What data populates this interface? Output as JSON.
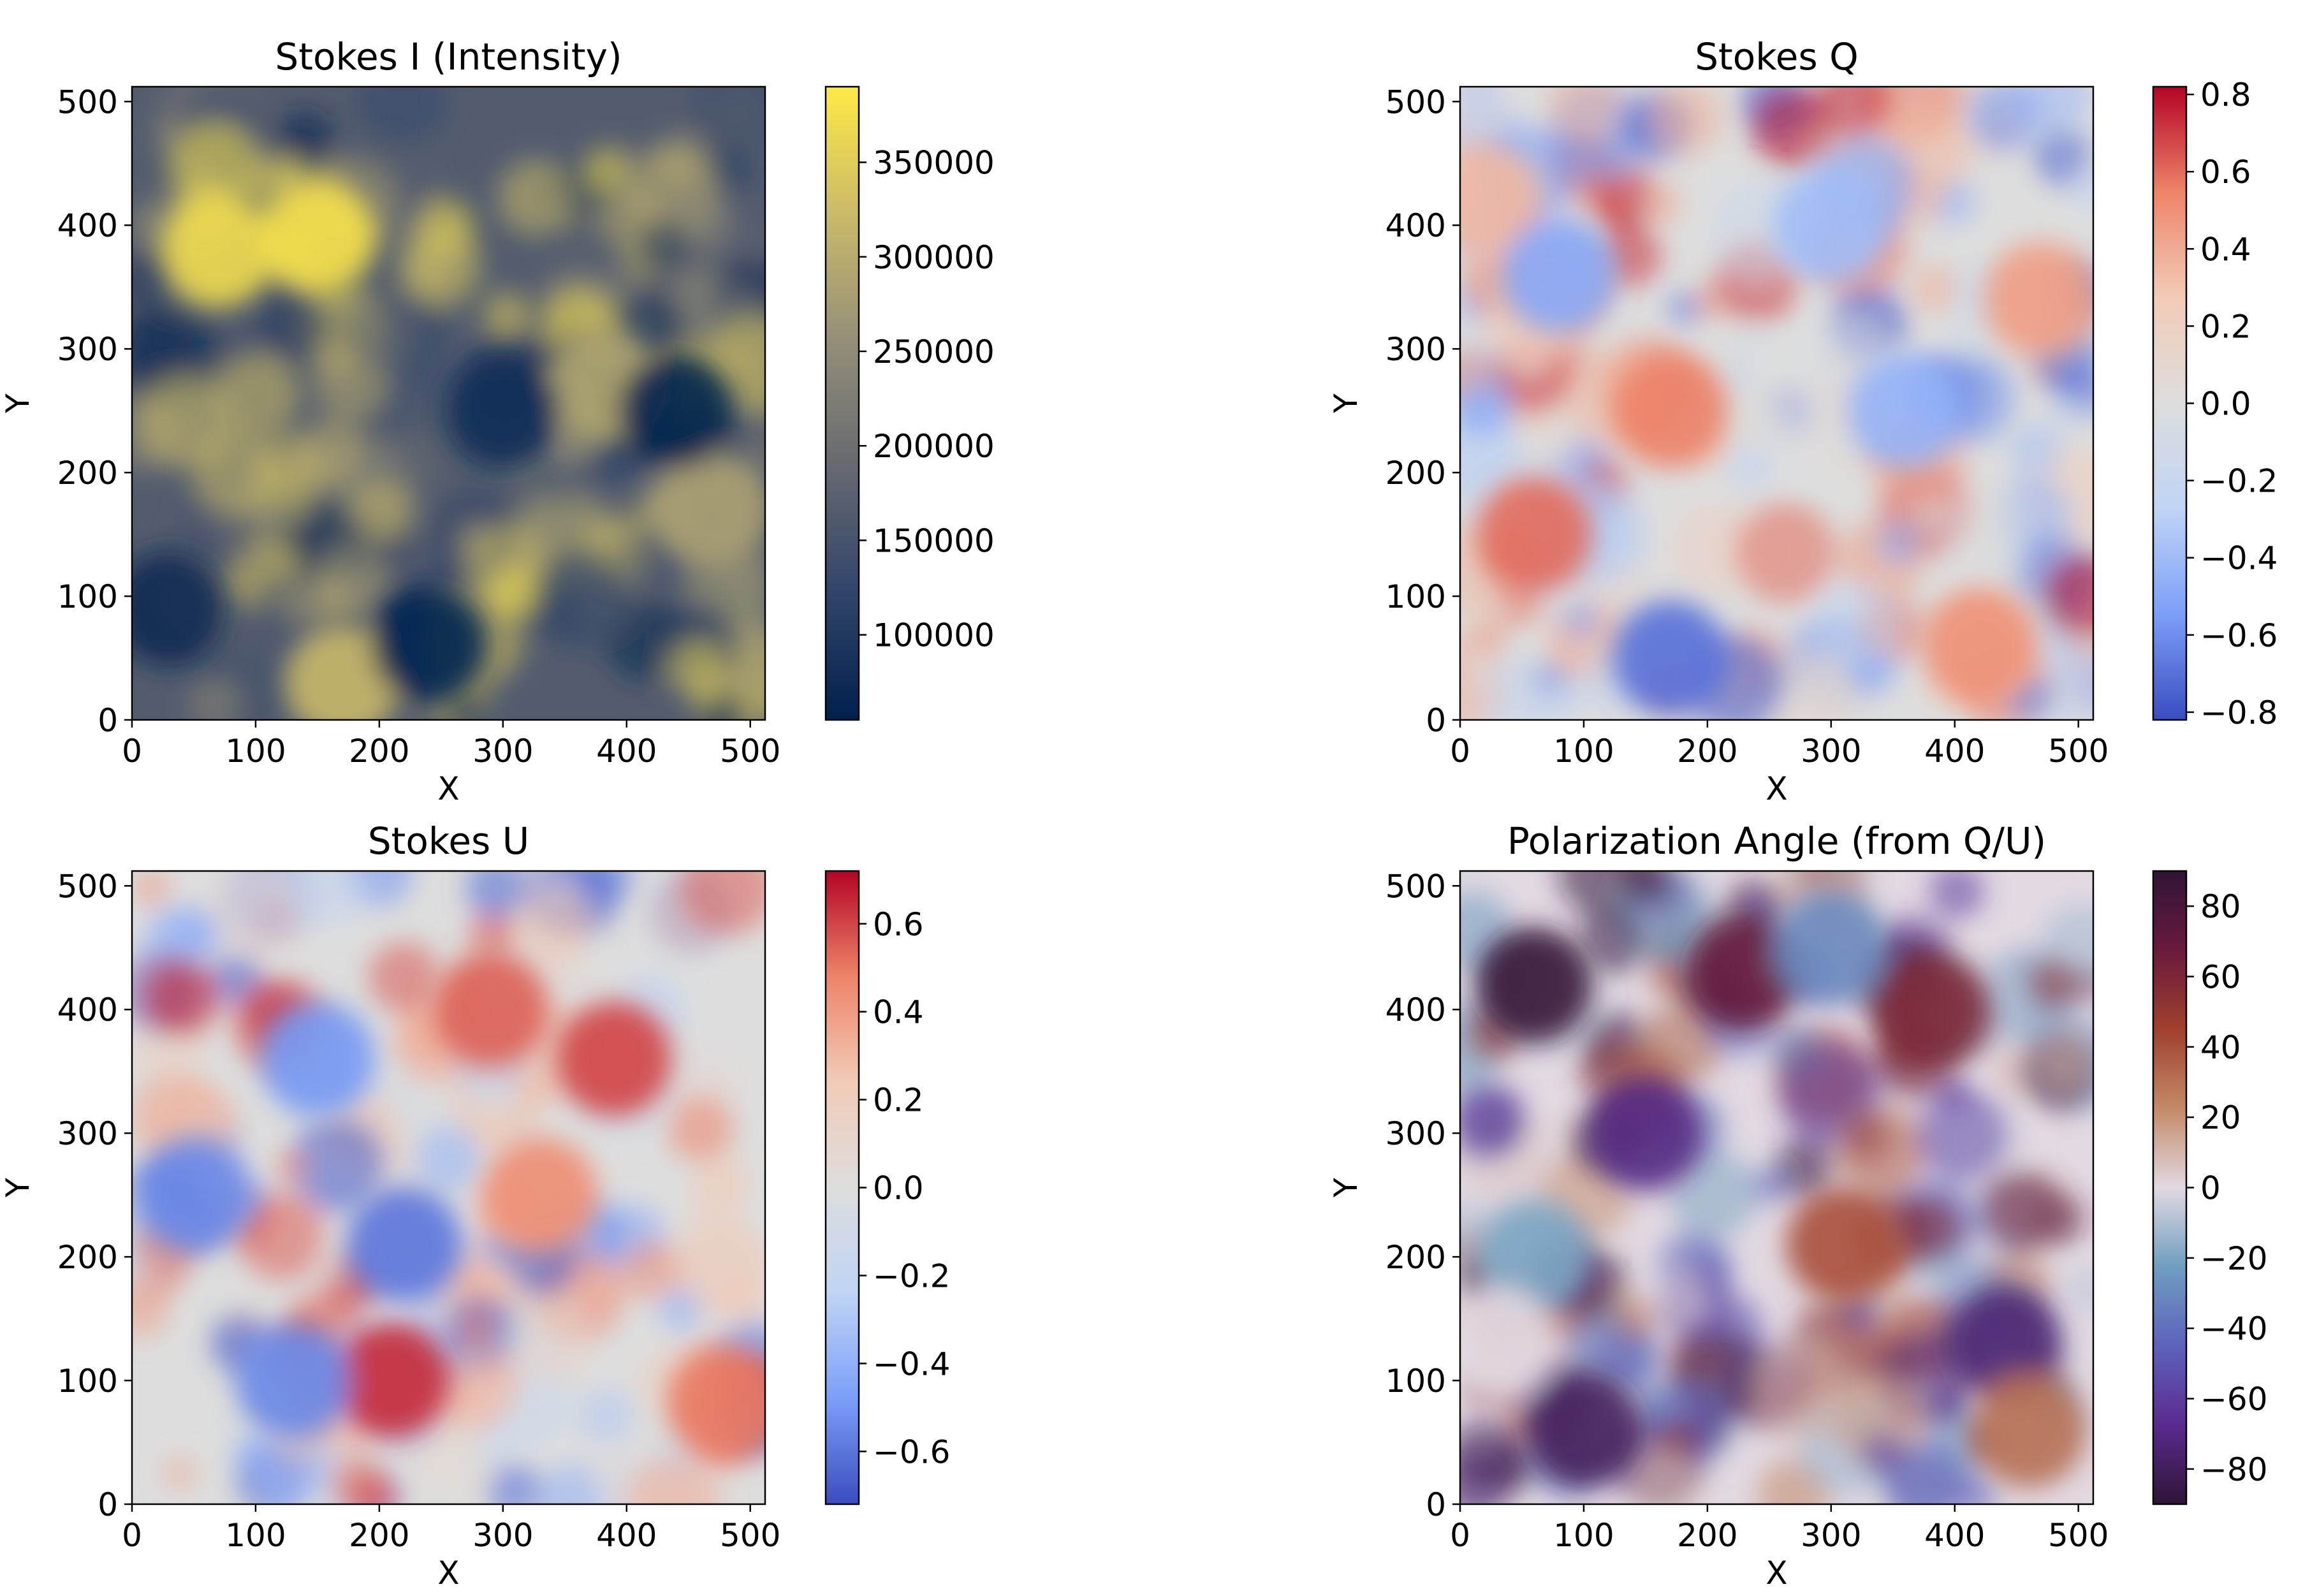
{
  "chart_data": [
    {
      "type": "heatmap",
      "title": "Stokes I (Intensity)",
      "xlabel": "X",
      "ylabel": "Y",
      "xlim": [
        0,
        512
      ],
      "ylim": [
        0,
        512
      ],
      "xticks": [
        0,
        100,
        200,
        300,
        400,
        500
      ],
      "yticks": [
        0,
        100,
        200,
        300,
        400,
        500
      ],
      "colorbar": {
        "range": [
          55000,
          390000
        ],
        "ticks": [
          100000,
          150000,
          200000,
          250000,
          300000,
          350000
        ],
        "tick_labels": [
          "100000",
          "150000",
          "200000",
          "250000",
          "300000",
          "350000"
        ],
        "colormap": "cividis",
        "colors": [
          "#00204c",
          "#31446b",
          "#666970",
          "#958f78",
          "#cbba69",
          "#ffe945"
        ]
      },
      "features": [
        {
          "x": 70,
          "y": 380,
          "value": 370000
        },
        {
          "x": 150,
          "y": 390,
          "value": 380000
        },
        {
          "x": 170,
          "y": 30,
          "value": 320000
        },
        {
          "x": 380,
          "y": 270,
          "value": 290000
        },
        {
          "x": 470,
          "y": 170,
          "value": 280000
        },
        {
          "x": 30,
          "y": 90,
          "value": 70000
        },
        {
          "x": 240,
          "y": 60,
          "value": 65000
        },
        {
          "x": 440,
          "y": 250,
          "value": 60000
        },
        {
          "x": 300,
          "y": 250,
          "value": 80000
        }
      ]
    },
    {
      "type": "heatmap",
      "title": "Stokes Q",
      "xlabel": "X",
      "ylabel": "Y",
      "xlim": [
        0,
        512
      ],
      "ylim": [
        0,
        512
      ],
      "xticks": [
        0,
        100,
        200,
        300,
        400,
        500
      ],
      "yticks": [
        0,
        100,
        200,
        300,
        400,
        500
      ],
      "colorbar": {
        "range": [
          -0.82,
          0.82
        ],
        "ticks": [
          -0.8,
          -0.6,
          -0.4,
          -0.2,
          0.0,
          0.2,
          0.4,
          0.6,
          0.8
        ],
        "tick_labels": [
          "−0.8",
          "−0.6",
          "−0.4",
          "−0.2",
          "0.0",
          "0.2",
          "0.4",
          "0.6",
          "0.8"
        ],
        "colormap": "coolwarm",
        "colors": [
          "#3b4cc0",
          "#7b9ff9",
          "#c0d4f5",
          "#dddddd",
          "#f2cbb7",
          "#ee8468",
          "#b40426"
        ]
      },
      "features": [
        {
          "x": 60,
          "y": 150,
          "value": 0.6
        },
        {
          "x": 170,
          "y": 250,
          "value": 0.55
        },
        {
          "x": 470,
          "y": 340,
          "value": 0.45
        },
        {
          "x": 420,
          "y": 60,
          "value": 0.5
        },
        {
          "x": 20,
          "y": 420,
          "value": 0.35
        },
        {
          "x": 170,
          "y": 50,
          "value": -0.7
        },
        {
          "x": 80,
          "y": 360,
          "value": -0.5
        },
        {
          "x": 360,
          "y": 250,
          "value": -0.45
        },
        {
          "x": 300,
          "y": 400,
          "value": -0.4
        }
      ]
    },
    {
      "type": "heatmap",
      "title": "Stokes U",
      "xlabel": "X",
      "ylabel": "Y",
      "xlim": [
        0,
        512
      ],
      "ylim": [
        0,
        512
      ],
      "xticks": [
        0,
        100,
        200,
        300,
        400,
        500
      ],
      "yticks": [
        0,
        100,
        200,
        300,
        400,
        500
      ],
      "colorbar": {
        "range": [
          -0.72,
          0.72
        ],
        "ticks": [
          -0.6,
          -0.4,
          -0.2,
          0.0,
          0.2,
          0.4,
          0.6
        ],
        "tick_labels": [
          "−0.6",
          "−0.4",
          "−0.2",
          "0.0",
          "0.2",
          "0.4",
          "0.6"
        ],
        "colormap": "coolwarm",
        "colors": [
          "#3b4cc0",
          "#7b9ff9",
          "#c0d4f5",
          "#dddddd",
          "#f2cbb7",
          "#ee8468",
          "#b40426"
        ]
      },
      "features": [
        {
          "x": 210,
          "y": 100,
          "value": 0.65
        },
        {
          "x": 390,
          "y": 360,
          "value": 0.6
        },
        {
          "x": 290,
          "y": 400,
          "value": 0.55
        },
        {
          "x": 480,
          "y": 80,
          "value": 0.5
        },
        {
          "x": 330,
          "y": 250,
          "value": 0.45
        },
        {
          "x": 50,
          "y": 250,
          "value": -0.55
        },
        {
          "x": 220,
          "y": 210,
          "value": -0.6
        },
        {
          "x": 150,
          "y": 360,
          "value": -0.5
        },
        {
          "x": 130,
          "y": 100,
          "value": -0.55
        }
      ]
    },
    {
      "type": "heatmap",
      "title": "Polarization Angle (from Q/U)",
      "xlabel": "X",
      "ylabel": "Y",
      "xlim": [
        0,
        512
      ],
      "ylim": [
        0,
        512
      ],
      "xticks": [
        0,
        100,
        200,
        300,
        400,
        500
      ],
      "yticks": [
        0,
        100,
        200,
        300,
        400,
        500
      ],
      "colorbar": {
        "range": [
          -90,
          90
        ],
        "ticks": [
          -80,
          -60,
          -40,
          -20,
          0,
          20,
          40,
          60,
          80
        ],
        "tick_labels": [
          "−80",
          "−60",
          "−40",
          "−20",
          "0",
          "20",
          "40",
          "60",
          "80"
        ],
        "colormap": "twilight_shifted",
        "colors": [
          "#2f1436",
          "#5a2a8e",
          "#5d62bd",
          "#6f9ec0",
          "#e2d9e2",
          "#c48a67",
          "#a0402e",
          "#6a1a3c",
          "#2f1436"
        ]
      },
      "features": [
        {
          "x": 230,
          "y": 430,
          "value": 70
        },
        {
          "x": 60,
          "y": 420,
          "value": 85
        },
        {
          "x": 310,
          "y": 210,
          "value": 40
        },
        {
          "x": 380,
          "y": 400,
          "value": 60
        },
        {
          "x": 150,
          "y": 300,
          "value": -70
        },
        {
          "x": 100,
          "y": 60,
          "value": -80
        },
        {
          "x": 440,
          "y": 130,
          "value": -75
        },
        {
          "x": 60,
          "y": 200,
          "value": -20
        },
        {
          "x": 30,
          "y": 130,
          "value": 0
        },
        {
          "x": 300,
          "y": 450,
          "value": -30
        },
        {
          "x": 460,
          "y": 60,
          "value": 30
        }
      ]
    }
  ]
}
